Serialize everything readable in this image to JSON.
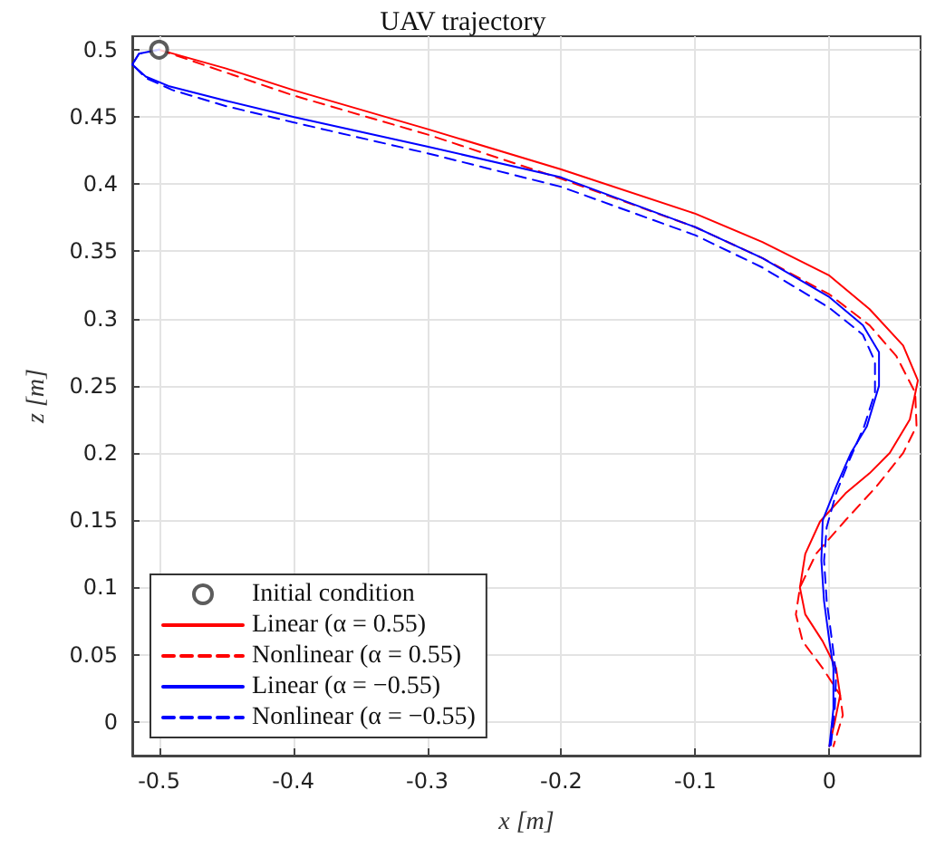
{
  "chart_data": {
    "type": "line",
    "title": "UAV trajectory",
    "xlabel": "x [m]",
    "ylabel": "z [m]",
    "xlim": [
      -0.52,
      0.068
    ],
    "ylim": [
      -0.025,
      0.51
    ],
    "xticks": [
      -0.5,
      -0.4,
      -0.3,
      -0.2,
      -0.1,
      0
    ],
    "yticks": [
      0,
      0.05,
      0.1,
      0.15,
      0.2,
      0.25,
      0.3,
      0.35,
      0.4,
      0.45,
      0.5
    ],
    "grid": true,
    "legend": "bottom left",
    "marker": "none",
    "series": [
      {
        "name": "Initial condition",
        "type": "scatter",
        "marker": "circle",
        "color": "#333333",
        "x": [
          -0.5
        ],
        "values": [
          0.5
        ]
      },
      {
        "name": "Linear (α = 0.55)",
        "color": "#ff0000",
        "line_style": "solid",
        "x": [
          -0.5,
          -0.45,
          -0.4,
          -0.3,
          -0.2,
          -0.1,
          -0.05,
          0,
          0.03,
          0.055,
          0.066,
          0.06,
          0.045,
          0.03,
          0.012,
          -0.007,
          -0.018,
          -0.022,
          -0.018,
          -0.005,
          0.005,
          0.008,
          0.004,
          0
        ],
        "values": [
          0.5,
          0.486,
          0.47,
          0.441,
          0.411,
          0.378,
          0.357,
          0.332,
          0.307,
          0.28,
          0.254,
          0.225,
          0.2,
          0.185,
          0.17,
          0.149,
          0.125,
          0.1,
          0.08,
          0.06,
          0.04,
          0.02,
          0,
          -0.018
        ]
      },
      {
        "name": "Nonlinear (α = 0.55)",
        "color": "#ff0000",
        "line_style": "dashed",
        "x": [
          -0.5,
          -0.45,
          -0.4,
          -0.3,
          -0.2,
          -0.1,
          -0.05,
          0,
          0.03,
          0.05,
          0.064,
          0.065,
          0.055,
          0.035,
          0.012,
          -0.01,
          -0.022,
          -0.025,
          -0.02,
          -0.005,
          0.008,
          0.01,
          0.003
        ],
        "values": [
          0.5,
          0.483,
          0.466,
          0.437,
          0.404,
          0.368,
          0.345,
          0.318,
          0.295,
          0.272,
          0.245,
          0.22,
          0.2,
          0.175,
          0.15,
          0.125,
          0.1,
          0.08,
          0.06,
          0.04,
          0.02,
          0.005,
          -0.018
        ]
      },
      {
        "name": "Linear (α = −0.55)",
        "color": "#0000ff",
        "line_style": "solid",
        "x": [
          -0.5,
          -0.515,
          -0.52,
          -0.51,
          -0.493,
          -0.45,
          -0.4,
          -0.3,
          -0.2,
          -0.1,
          -0.05,
          0,
          0.025,
          0.037,
          0.037,
          0.028,
          0.016,
          0.005,
          -0.005,
          -0.006,
          -0.004,
          0,
          0.003,
          0.003,
          0
        ],
        "values": [
          0.5,
          0.497,
          0.489,
          0.48,
          0.473,
          0.462,
          0.45,
          0.428,
          0.405,
          0.368,
          0.345,
          0.316,
          0.295,
          0.275,
          0.25,
          0.22,
          0.2,
          0.175,
          0.15,
          0.12,
          0.09,
          0.06,
          0.04,
          0.01,
          -0.018
        ]
      },
      {
        "name": "Nonlinear (α = −0.55)",
        "color": "#0000ff",
        "line_style": "dashed",
        "x": [
          -0.5,
          -0.515,
          -0.52,
          -0.51,
          -0.49,
          -0.45,
          -0.4,
          -0.3,
          -0.2,
          -0.1,
          -0.05,
          0,
          0.025,
          0.034,
          0.034,
          0.026,
          0.015,
          0.005,
          -0.002,
          -0.004,
          -0.002,
          0.002,
          0.005,
          0.004,
          0.001
        ],
        "values": [
          0.5,
          0.497,
          0.489,
          0.479,
          0.47,
          0.458,
          0.446,
          0.423,
          0.398,
          0.362,
          0.338,
          0.308,
          0.288,
          0.268,
          0.245,
          0.22,
          0.195,
          0.17,
          0.145,
          0.12,
          0.09,
          0.06,
          0.035,
          0.01,
          -0.018
        ]
      }
    ]
  }
}
